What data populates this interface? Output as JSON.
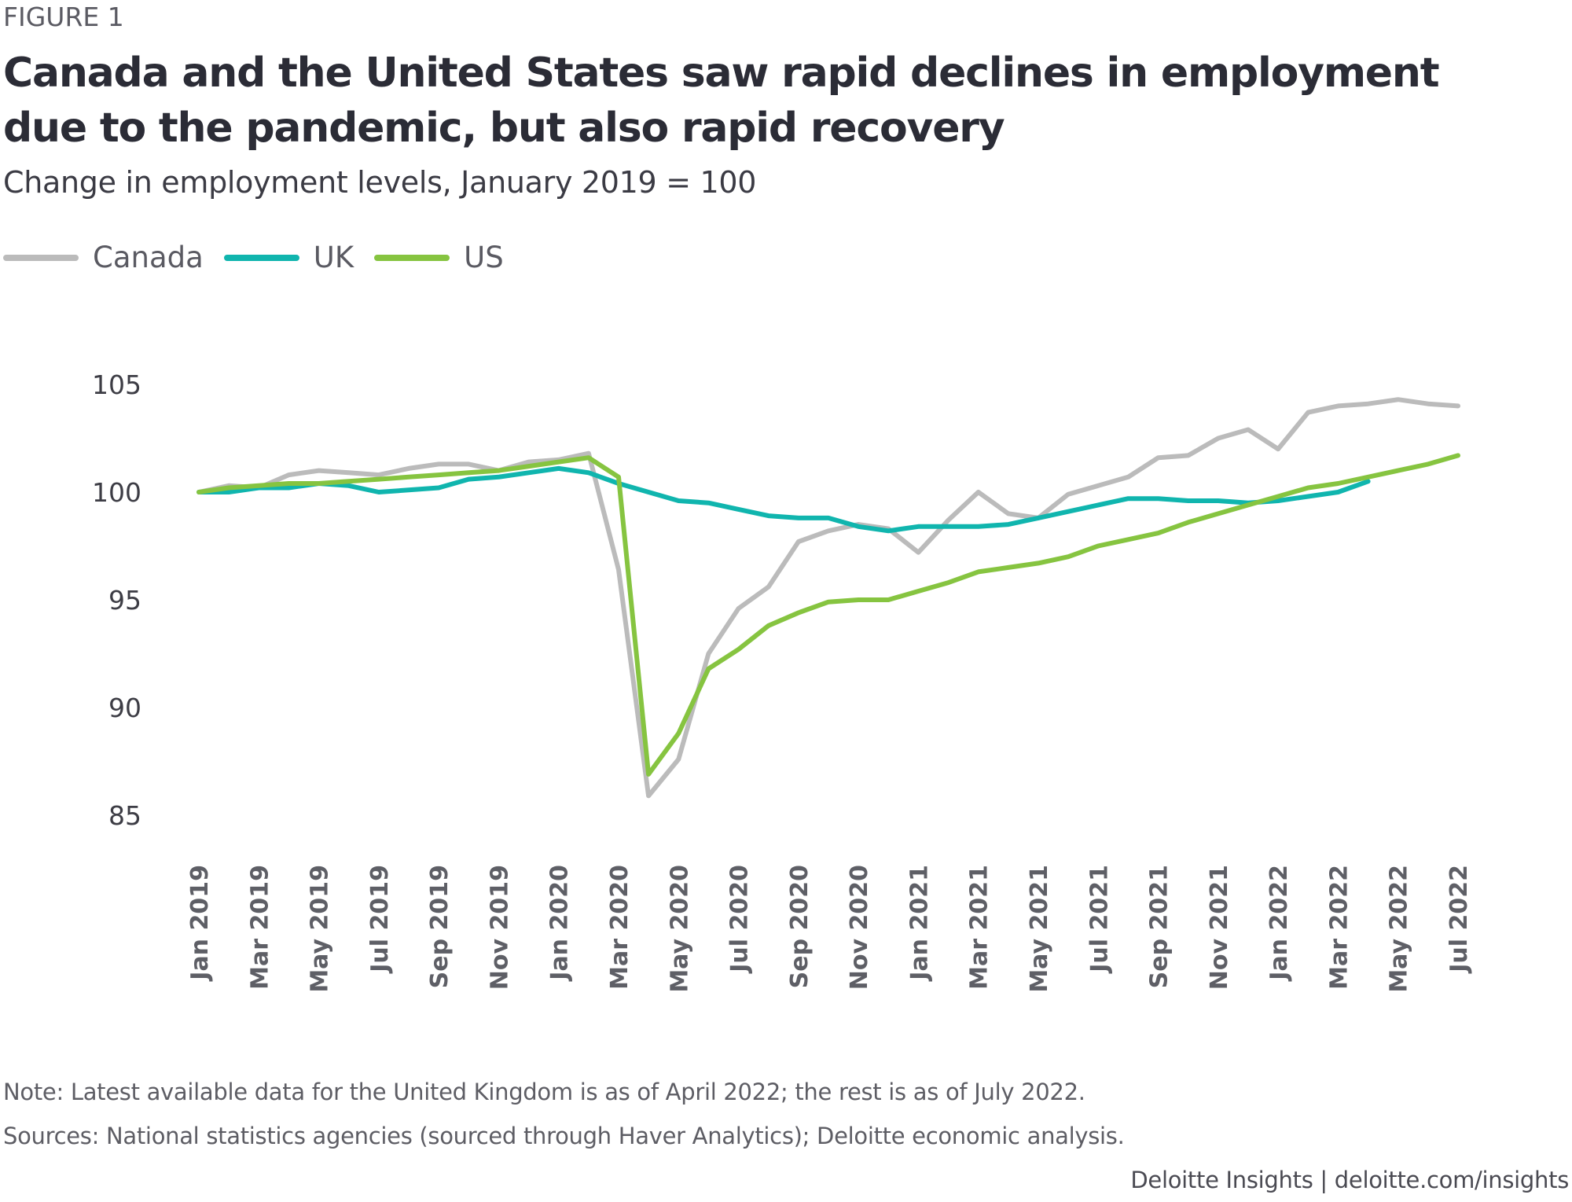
{
  "figure_label": "FIGURE 1",
  "title": "Canada and the United States saw rapid declines in employment due to the pandemic, but also rapid recovery",
  "subtitle": "Change in employment levels, January 2019 = 100",
  "legend": [
    {
      "name": "Canada",
      "color": "#bbbbbb"
    },
    {
      "name": "UK",
      "color": "#10b5ae"
    },
    {
      "name": "US",
      "color": "#86c440"
    }
  ],
  "note": "Note: Latest available data for the United Kingdom is as of April 2022; the rest is as of July 2022.",
  "sources": "Sources: National statistics agencies (sourced through Haver Analytics); Deloitte economic analysis.",
  "credit": "Deloitte Insights | deloitte.com/insights",
  "chart_data": {
    "type": "line",
    "title": "Canada and the United States saw rapid declines in employment due to the pandemic, but also rapid recovery",
    "subtitle": "Change in employment levels, January 2019 = 100",
    "xlabel": "",
    "ylabel": "",
    "ylim": [
      85,
      105
    ],
    "yticks": [
      105,
      100,
      95,
      90,
      85
    ],
    "grid": false,
    "legend_position": "top-left",
    "x": [
      "Jan 2019",
      "Feb 2019",
      "Mar 2019",
      "Apr 2019",
      "May 2019",
      "Jun 2019",
      "Jul 2019",
      "Aug 2019",
      "Sep 2019",
      "Oct 2019",
      "Nov 2019",
      "Dec 2019",
      "Jan 2020",
      "Feb 2020",
      "Mar 2020",
      "Apr 2020",
      "May 2020",
      "Jun 2020",
      "Jul 2020",
      "Aug 2020",
      "Sep 2020",
      "Oct 2020",
      "Nov 2020",
      "Dec 2020",
      "Jan 2021",
      "Feb 2021",
      "Mar 2021",
      "Apr 2021",
      "May 2021",
      "Jun 2021",
      "Jul 2021",
      "Aug 2021",
      "Sep 2021",
      "Oct 2021",
      "Nov 2021",
      "Dec 2021",
      "Jan 2022",
      "Feb 2022",
      "Mar 2022",
      "Apr 2022",
      "May 2022",
      "Jun 2022",
      "Jul 2022"
    ],
    "xtick_labels": [
      "Jan 2019",
      "Mar 2019",
      "May 2019",
      "Jul 2019",
      "Sep 2019",
      "Nov 2019",
      "Jan 2020",
      "Mar 2020",
      "May 2020",
      "Jul 2020",
      "Sep 2020",
      "Nov 2020",
      "Jan 2021",
      "Mar 2021",
      "May 2021",
      "Jul 2021",
      "Sep 2021",
      "Nov 2021",
      "Jan 2022",
      "Mar 2022",
      "May 2022",
      "Jul 2022"
    ],
    "series": [
      {
        "name": "Canada",
        "color": "#bbbbbb",
        "values": [
          100.0,
          100.3,
          100.2,
          100.8,
          101.0,
          100.9,
          100.8,
          101.1,
          101.3,
          101.3,
          101.0,
          101.4,
          101.5,
          101.8,
          96.4,
          85.9,
          87.6,
          92.5,
          94.6,
          95.6,
          97.7,
          98.2,
          98.5,
          98.3,
          97.2,
          98.7,
          100.0,
          99.0,
          98.8,
          99.9,
          100.3,
          100.7,
          101.6,
          101.7,
          102.5,
          102.9,
          102.0,
          103.7,
          104.0,
          104.1,
          104.3,
          104.1,
          104.0
        ]
      },
      {
        "name": "UK",
        "color": "#10b5ae",
        "values": [
          100.0,
          100.0,
          100.2,
          100.2,
          100.4,
          100.3,
          100.0,
          100.1,
          100.2,
          100.6,
          100.7,
          100.9,
          101.1,
          100.9,
          100.4,
          100.0,
          99.6,
          99.5,
          99.2,
          98.9,
          98.8,
          98.8,
          98.4,
          98.2,
          98.4,
          98.4,
          98.4,
          98.5,
          98.8,
          99.1,
          99.4,
          99.7,
          99.7,
          99.6,
          99.6,
          99.5,
          99.6,
          99.8,
          100.0,
          100.5
        ]
      },
      {
        "name": "US",
        "color": "#86c440",
        "values": [
          100.0,
          100.2,
          100.3,
          100.4,
          100.4,
          100.5,
          100.6,
          100.7,
          100.8,
          100.9,
          101.0,
          101.2,
          101.4,
          101.6,
          100.7,
          86.9,
          88.8,
          91.8,
          92.7,
          93.8,
          94.4,
          94.9,
          95.0,
          95.0,
          95.4,
          95.8,
          96.3,
          96.5,
          96.7,
          97.0,
          97.5,
          97.8,
          98.1,
          98.6,
          99.0,
          99.4,
          99.8,
          100.2,
          100.4,
          100.7,
          101.0,
          101.3,
          101.7
        ]
      }
    ]
  }
}
